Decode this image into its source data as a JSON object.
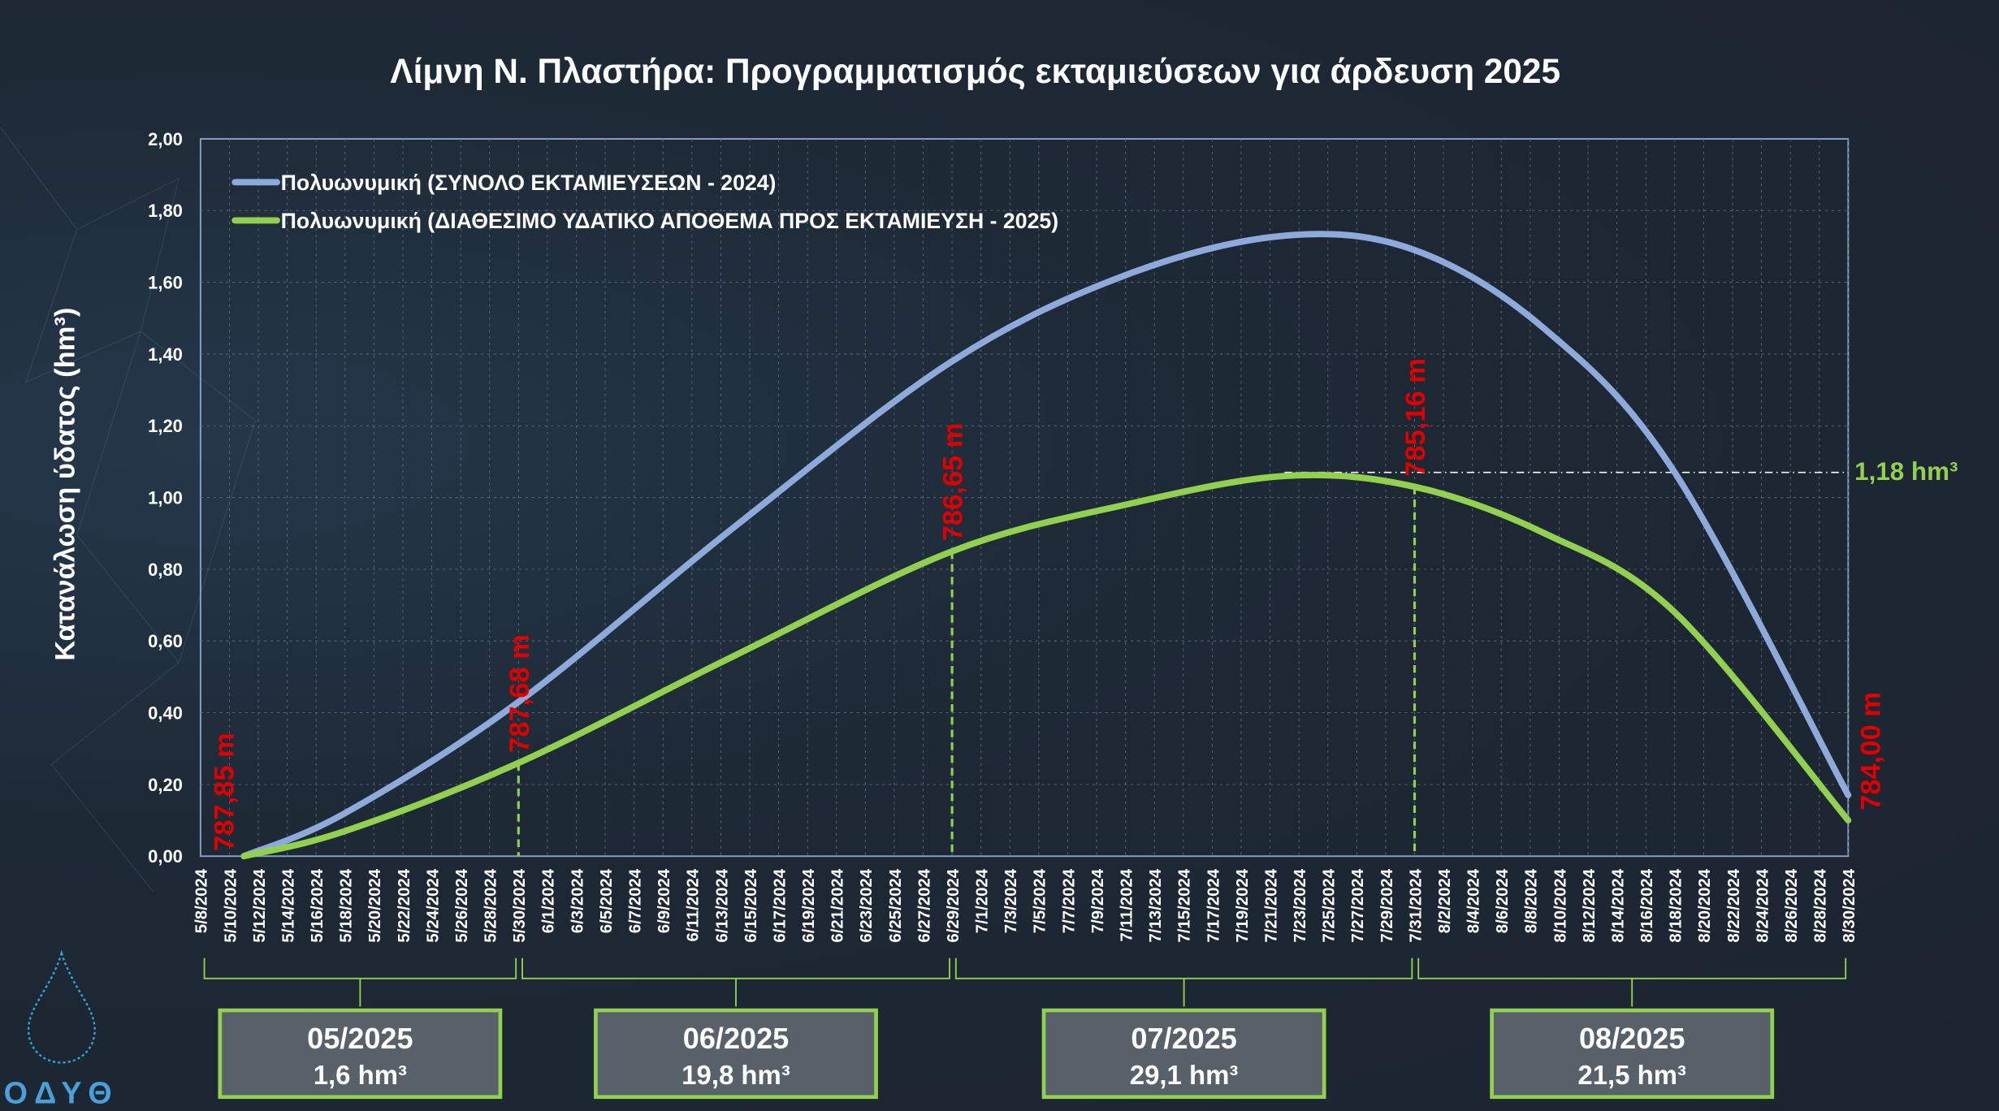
{
  "chart_data": {
    "type": "line",
    "title": "Λίμνη Ν. Πλαστήρα: Προγραμματισμός εκταμιεύσεων για άρδευση 2025",
    "ylabel": "Κατανάλωση ύδατος (hm³)",
    "xlabel": "",
    "ylim": [
      0,
      2
    ],
    "yticks": [
      "0,00",
      "0,20",
      "0,40",
      "0,60",
      "0,80",
      "1,00",
      "1,20",
      "1,40",
      "1,60",
      "1,80",
      "2,00"
    ],
    "x_start": "5/8/2024",
    "x_end": "8/30/2024",
    "xticks": [
      "5/8/2024",
      "5/10/2024",
      "5/12/2024",
      "5/14/2024",
      "5/16/2024",
      "5/18/2024",
      "5/20/2024",
      "5/22/2024",
      "5/24/2024",
      "5/26/2024",
      "5/28/2024",
      "5/30/2024",
      "6/1/2024",
      "6/3/2024",
      "6/5/2024",
      "6/7/2024",
      "6/9/2024",
      "6/11/2024",
      "6/13/2024",
      "6/15/2024",
      "6/17/2024",
      "6/19/2024",
      "6/21/2024",
      "6/23/2024",
      "6/25/2024",
      "6/27/2024",
      "6/29/2024",
      "7/1/2024",
      "7/3/2024",
      "7/5/2024",
      "7/7/2024",
      "7/9/2024",
      "7/11/2024",
      "7/13/2024",
      "7/15/2024",
      "7/17/2024",
      "7/19/2024",
      "7/21/2024",
      "7/23/2024",
      "7/25/2024",
      "7/27/2024",
      "7/29/2024",
      "7/31/2024",
      "8/2/2024",
      "8/4/2024",
      "8/6/2024",
      "8/8/2024",
      "8/10/2024",
      "8/12/2024",
      "8/14/2024",
      "8/16/2024",
      "8/18/2024",
      "8/20/2024",
      "8/22/2024",
      "8/24/2024",
      "8/26/2024",
      "8/28/2024",
      "8/30/2024"
    ],
    "grid": true,
    "legend_position": "top-left",
    "series": [
      {
        "name": "Πολυωνυμική (ΣΥΝΟΛΟ ΕΚΤΑΜΙΕΥΣΕΩΝ - 2024)",
        "color": "#8eaadb",
        "x_days": [
          3,
          10,
          22,
          37,
          52,
          64,
          75,
          84,
          93,
          102,
          114
        ],
        "values": [
          0,
          0.12,
          0.43,
          0.92,
          1.38,
          1.62,
          1.73,
          1.69,
          1.47,
          1.07,
          0.17
        ]
      },
      {
        "name": "Πολυωνυμική (ΔΙΑΘΕΣΙΜΟ ΥΔΑΤΙΚΟ ΑΠΟΘΕΜΑ ΠΡΟΣ ΕΚΤΑΜΙΕΥΣΗ - 2025)",
        "color": "#92d050",
        "x_days": [
          3,
          10,
          22,
          37,
          52,
          64,
          75,
          84,
          93,
          102,
          114
        ],
        "values": [
          0,
          0.07,
          0.26,
          0.56,
          0.85,
          0.98,
          1.06,
          1.03,
          0.9,
          0.68,
          0.1
        ]
      }
    ],
    "vertical_markers": [
      {
        "day": 22,
        "value": 0.26,
        "label": "787,68 m"
      },
      {
        "day": 52,
        "value": 0.85,
        "label": "786,65 m"
      },
      {
        "day": 84,
        "value": 1.03,
        "label": "785,16 m"
      }
    ],
    "elevation_labels": [
      {
        "day": 1,
        "label": "787,85 m"
      },
      {
        "day": 116,
        "label": "784,00 m"
      }
    ],
    "reference_line": {
      "value": 1.07,
      "from_day": 75,
      "label": "1,18 hm³"
    },
    "months": [
      {
        "label": "05/2025",
        "volume": "1,6 hm³",
        "from_day": 0,
        "to_day": 22
      },
      {
        "label": "06/2025",
        "volume": "19,8 hm³",
        "from_day": 22,
        "to_day": 52
      },
      {
        "label": "07/2025",
        "volume": "29,1 hm³",
        "from_day": 52,
        "to_day": 84
      },
      {
        "label": "08/2025",
        "volume": "21,5 hm³",
        "from_day": 84,
        "to_day": 114
      }
    ]
  },
  "logo": "ΟΔΥΘ",
  "colors": {
    "red": "#e00000",
    "green": "#92d050",
    "blue": "#8eaadb"
  }
}
